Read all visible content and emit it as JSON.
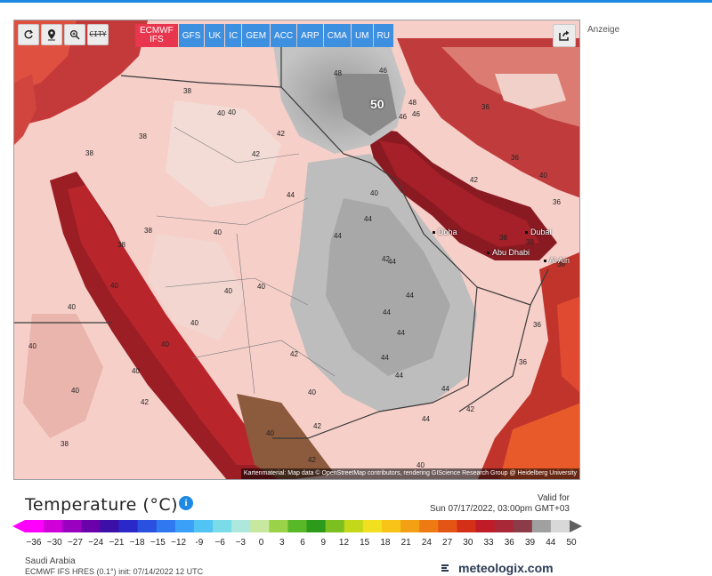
{
  "toolbar": {
    "controls": [
      {
        "name": "refresh-icon"
      },
      {
        "name": "location-pin-icon"
      },
      {
        "name": "zoom-icon"
      },
      {
        "name": "city-toggle",
        "label": "CITY"
      }
    ],
    "models": [
      "ECMWF IFS",
      "GFS",
      "UK",
      "IC",
      "GEM",
      "ACC",
      "ARP",
      "CMA",
      "UM",
      "RU"
    ],
    "active_model": "ECMWF IFS",
    "share_icon": "share-icon"
  },
  "map": {
    "attribution": "Kartenmaterial: Map data © OpenStreetMap contributors, rendering GIScience Research Group @ Heidelberg University",
    "values": [
      "50",
      "46",
      "48",
      "48",
      "46",
      "46",
      "42",
      "40",
      "38",
      "40",
      "42",
      "40",
      "38",
      "44",
      "44",
      "44",
      "40",
      "44",
      "42",
      "40",
      "44",
      "38",
      "40",
      "42",
      "40",
      "44",
      "44",
      "40",
      "42",
      "44",
      "42",
      "44",
      "40",
      "38",
      "40",
      "42",
      "38",
      "36",
      "40",
      "40",
      "44",
      "40",
      "36",
      "38",
      "44",
      "42",
      "40",
      "40",
      "42",
      "36",
      "36",
      "40",
      "38",
      "36",
      "38",
      "40",
      "38"
    ],
    "cities_latin": [
      "Doha",
      "Dubai",
      "Abu Dhabi",
      "Al Ain"
    ]
  },
  "side": {
    "ad_label": "Anzeige"
  },
  "legend": {
    "title": "Temperature",
    "unit": "(°C)",
    "valid_label": "Valid for",
    "valid_time": "Sun 07/17/2022, 03:00pm GMT+03",
    "ticks": [
      "−36",
      "−30",
      "−27",
      "−24",
      "−21",
      "−18",
      "−15",
      "−12",
      "-9",
      "−6",
      "−3",
      "0",
      "3",
      "6",
      "9",
      "12",
      "15",
      "18",
      "21",
      "24",
      "27",
      "30",
      "33",
      "36",
      "39",
      "44",
      "50"
    ],
    "colors": [
      "#ff00ff",
      "#d000d8",
      "#9a00c0",
      "#6a00aa",
      "#3c10a8",
      "#2a28c8",
      "#2a50e0",
      "#2f78f0",
      "#3aa0f8",
      "#52c4f4",
      "#7adce8",
      "#aee8dc",
      "#c8e8a0",
      "#9ad24a",
      "#58b828",
      "#2c9a1a",
      "#7cc020",
      "#c4d81a",
      "#f0e020",
      "#f8c418",
      "#f4a014",
      "#ee7a14",
      "#e45414",
      "#d43018",
      "#c01c28",
      "#a82838",
      "#8c3c48",
      "#a0a0a0",
      "#d8d8d8"
    ],
    "region": "Saudi Arabia",
    "run": "ECMWF IFS HRES (0.1°) init: 07/14/2022 12 UTC"
  },
  "brand": {
    "name": "meteologix.com"
  }
}
